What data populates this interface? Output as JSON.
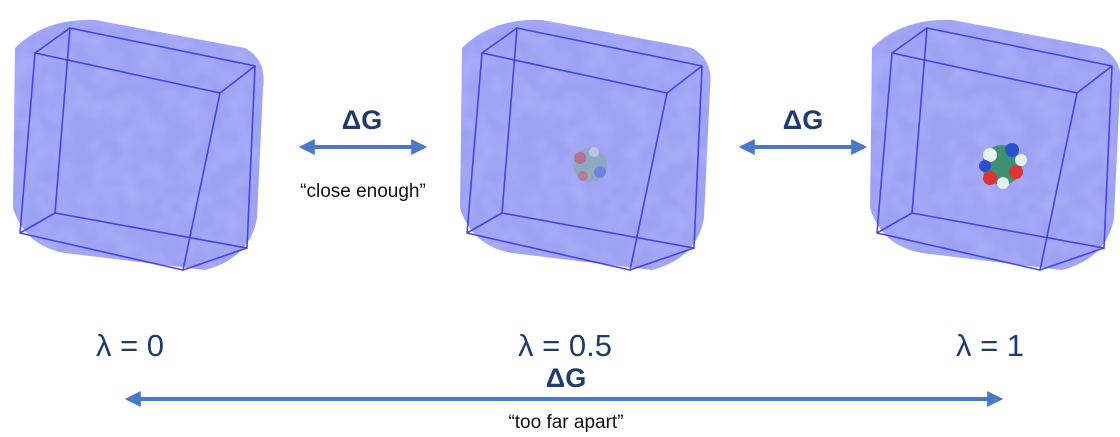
{
  "diagram": {
    "states": [
      {
        "label": "λ = 0"
      },
      {
        "label": "λ = 0.5"
      },
      {
        "label": "λ = 1"
      }
    ],
    "transitions": [
      {
        "label": "ΔG",
        "note": "“close enough”"
      },
      {
        "label": "ΔG"
      },
      {
        "label": "ΔG",
        "note": "“too far apart”"
      }
    ]
  }
}
